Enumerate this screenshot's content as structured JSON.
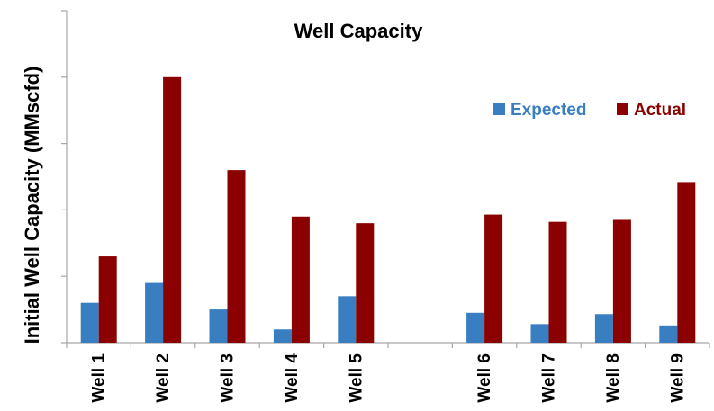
{
  "chart_data": {
    "type": "bar",
    "title": "Well Capacity",
    "xlabel": "",
    "ylabel": "Initial Well Capacity (MMscfd)",
    "categories": [
      "Well 1",
      "Well 2",
      "Well 3",
      "Well 4",
      "Well 5",
      "",
      "Well 6",
      "Well 7",
      "Well 8",
      "Well 9"
    ],
    "series": [
      {
        "name": "Expected",
        "color": "#3a7ec2",
        "values": [
          0.6,
          0.9,
          0.5,
          0.2,
          0.7,
          null,
          0.45,
          0.28,
          0.43,
          0.26
        ]
      },
      {
        "name": "Actual",
        "color": "#8b0000",
        "values": [
          1.3,
          4.0,
          2.6,
          1.9,
          1.8,
          null,
          1.93,
          1.82,
          1.85,
          2.42
        ]
      }
    ],
    "ylim": [
      0,
      5
    ],
    "gridlines": false,
    "y_tick_labels_shown": false,
    "legend_position": "upper-right"
  }
}
